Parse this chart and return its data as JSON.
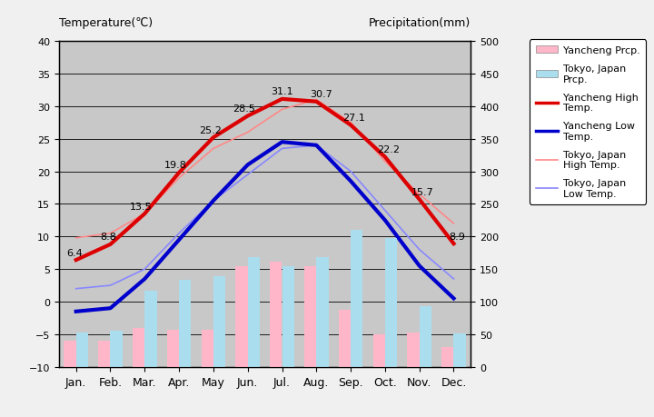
{
  "months": [
    "Jan.",
    "Feb.",
    "Mar.",
    "Apr.",
    "May",
    "Jun.",
    "Jul.",
    "Aug.",
    "Sep.",
    "Oct.",
    "Nov.",
    "Dec."
  ],
  "yancheng_high": [
    6.4,
    8.8,
    13.5,
    19.8,
    25.2,
    28.5,
    31.1,
    30.7,
    27.1,
    22.2,
    15.7,
    8.9
  ],
  "yancheng_low": [
    -1.5,
    -1.0,
    3.5,
    9.5,
    15.5,
    21.0,
    24.5,
    24.0,
    18.5,
    12.5,
    5.5,
    0.5
  ],
  "tokyo_high": [
    9.8,
    10.5,
    13.5,
    19.0,
    23.5,
    26.0,
    29.5,
    31.0,
    27.5,
    21.5,
    16.5,
    12.0
  ],
  "tokyo_low": [
    2.0,
    2.5,
    5.0,
    10.5,
    15.5,
    19.5,
    23.5,
    24.0,
    20.0,
    14.0,
    8.0,
    3.5
  ],
  "yancheng_precip_mm": [
    40,
    40,
    60,
    57,
    57,
    155,
    162,
    155,
    87,
    50,
    52,
    30
  ],
  "tokyo_precip_mm": [
    52,
    56,
    117,
    134,
    139,
    168,
    154,
    168,
    210,
    197,
    93,
    51
  ],
  "temp_ylim": [
    -10,
    40
  ],
  "precip_ylim": [
    0,
    500
  ],
  "temp_yticks": [
    -10,
    -5,
    0,
    5,
    10,
    15,
    20,
    25,
    30,
    35,
    40
  ],
  "precip_yticks": [
    0,
    50,
    100,
    150,
    200,
    250,
    300,
    350,
    400,
    450,
    500
  ],
  "bg_color": "#c8c8c8",
  "fig_bg_color": "#f0f0f0",
  "yancheng_high_color": "#dd0000",
  "yancheng_low_color": "#0000cc",
  "tokyo_high_color": "#ff8888",
  "tokyo_low_color": "#8888ff",
  "yancheng_precip_color": "#ffb6c8",
  "tokyo_precip_color": "#aaddee",
  "title_left": "Temperature(℃)",
  "title_right": "Precipitation(mm)",
  "legend_labels": [
    "Yancheng Prcp.",
    "Tokyo, Japan\nPrcp.",
    "Yancheng High\nTemp.",
    "Yancheng Low\nTemp.",
    "Tokyo, Japan\nHigh Temp.",
    "Tokyo, Japan\nLow Temp."
  ]
}
